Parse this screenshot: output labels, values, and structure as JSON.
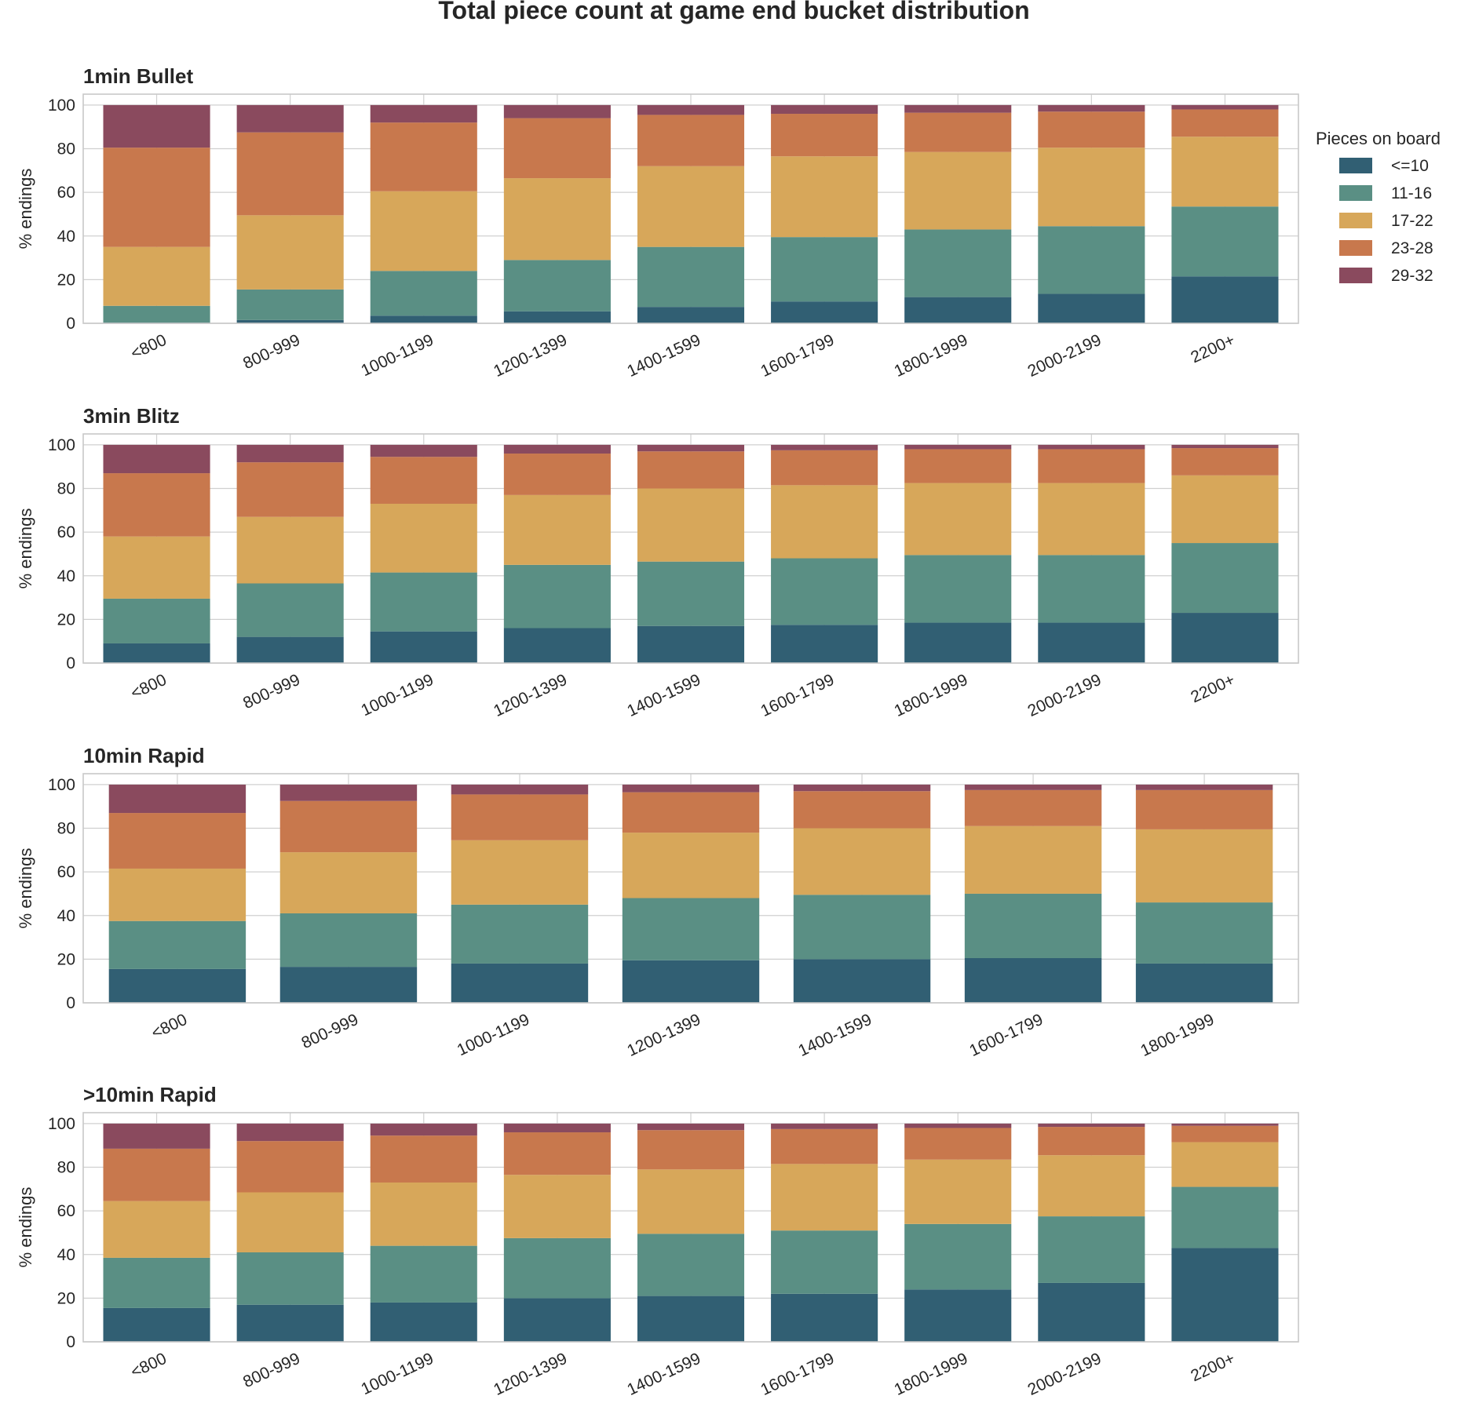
{
  "chart_data": {
    "type": "bar",
    "stacked": true,
    "title": "Total piece count at game end bucket distribution",
    "legend": {
      "title": "Pieces on board",
      "placement": "right",
      "entries": [
        "<=10",
        "11-16",
        "17-22",
        "23-28",
        "29-32"
      ]
    },
    "colors": {
      "<=10": "#315f73",
      "11-16": "#5a8f84",
      "17-22": "#d7a75a",
      "23-28": "#c8784d",
      "29-32": "#8a4a5e"
    },
    "grid": true,
    "panels": [
      {
        "title": "1min Bullet",
        "ylabel": "% endings",
        "ylim": [
          0,
          105
        ],
        "yticks": [
          0,
          20,
          40,
          60,
          80,
          100
        ],
        "categories": [
          "<800",
          "800-999",
          "1000-1199",
          "1200-1399",
          "1400-1599",
          "1600-1799",
          "1800-1999",
          "2000-2199",
          "2200+"
        ],
        "series": [
          {
            "name": "<=10",
            "values": [
              0.3,
              1.5,
              3.5,
              5.5,
              7.5,
              10,
              12,
              13.5,
              21.5
            ]
          },
          {
            "name": "11-16",
            "values": [
              7.7,
              14,
              20.5,
              23.5,
              27.5,
              29.5,
              31,
              31,
              32
            ]
          },
          {
            "name": "17-22",
            "values": [
              27,
              34,
              36.5,
              37.5,
              37,
              37,
              35.5,
              36,
              32
            ]
          },
          {
            "name": "23-28",
            "values": [
              45.5,
              38,
              31.5,
              27.5,
              23.5,
              19.5,
              18,
              16.5,
              12.5
            ]
          },
          {
            "name": "29-32",
            "values": [
              19.5,
              12.5,
              8,
              6,
              4.5,
              4,
              3.5,
              3,
              2
            ]
          }
        ]
      },
      {
        "title": "3min Blitz",
        "ylabel": "% endings",
        "ylim": [
          0,
          105
        ],
        "yticks": [
          0,
          20,
          40,
          60,
          80,
          100
        ],
        "categories": [
          "<800",
          "800-999",
          "1000-1199",
          "1200-1399",
          "1400-1599",
          "1600-1799",
          "1800-1999",
          "2000-2199",
          "2200+"
        ],
        "series": [
          {
            "name": "<=10",
            "values": [
              9,
              12,
              14.5,
              16,
              17,
              17.5,
              18.5,
              18.5,
              23
            ]
          },
          {
            "name": "11-16",
            "values": [
              20.5,
              24.5,
              27,
              29,
              29.5,
              30.5,
              31,
              31,
              32
            ]
          },
          {
            "name": "17-22",
            "values": [
              28.5,
              30.5,
              31.5,
              32,
              33.5,
              33.5,
              33,
              33,
              31
            ]
          },
          {
            "name": "23-28",
            "values": [
              29,
              25,
              21.5,
              19,
              17,
              16,
              15.5,
              15.5,
              12.5
            ]
          },
          {
            "name": "29-32",
            "values": [
              13,
              8,
              5.5,
              4,
              3,
              2.5,
              2,
              2,
              1.5
            ]
          }
        ]
      },
      {
        "title": "10min Rapid",
        "ylabel": "% endings",
        "ylim": [
          0,
          105
        ],
        "yticks": [
          0,
          20,
          40,
          60,
          80,
          100
        ],
        "categories": [
          "<800",
          "800-999",
          "1000-1199",
          "1200-1399",
          "1400-1599",
          "1600-1799",
          "1800-1999"
        ],
        "series": [
          {
            "name": "<=10",
            "values": [
              15.5,
              16.5,
              18,
              19.5,
              20,
              20.5,
              18
            ]
          },
          {
            "name": "11-16",
            "values": [
              22,
              24.5,
              27,
              28.5,
              29.5,
              29.5,
              28
            ]
          },
          {
            "name": "17-22",
            "values": [
              24,
              28,
              29.5,
              30,
              30.5,
              31,
              33.5
            ]
          },
          {
            "name": "23-28",
            "values": [
              25.5,
              23.5,
              21,
              18.5,
              17,
              16.5,
              18
            ]
          },
          {
            "name": "29-32",
            "values": [
              13,
              7.5,
              4.5,
              3.5,
              3,
              2.5,
              2.5
            ]
          }
        ]
      },
      {
        "title": ">10min Rapid",
        "ylabel": "% endings",
        "ylim": [
          0,
          105
        ],
        "yticks": [
          0,
          20,
          40,
          60,
          80,
          100
        ],
        "categories": [
          "<800",
          "800-999",
          "1000-1199",
          "1200-1399",
          "1400-1599",
          "1600-1799",
          "1800-1999",
          "2000-2199",
          "2200+"
        ],
        "series": [
          {
            "name": "<=10",
            "values": [
              15.5,
              17,
              18,
              20,
              21,
              22,
              24,
              27,
              43
            ]
          },
          {
            "name": "11-16",
            "values": [
              23,
              24,
              26,
              27.5,
              28.5,
              29,
              30,
              30.5,
              28
            ]
          },
          {
            "name": "17-22",
            "values": [
              26,
              27.5,
              29,
              29,
              29.5,
              30.5,
              29.5,
              28,
              20.5
            ]
          },
          {
            "name": "23-28",
            "values": [
              24,
              23.5,
              21.5,
              19.5,
              18,
              16,
              14.5,
              13,
              7.5
            ]
          },
          {
            "name": "29-32",
            "values": [
              11.5,
              8,
              5.5,
              4,
              3,
              2.5,
              2,
              1.5,
              1
            ]
          }
        ]
      }
    ]
  }
}
